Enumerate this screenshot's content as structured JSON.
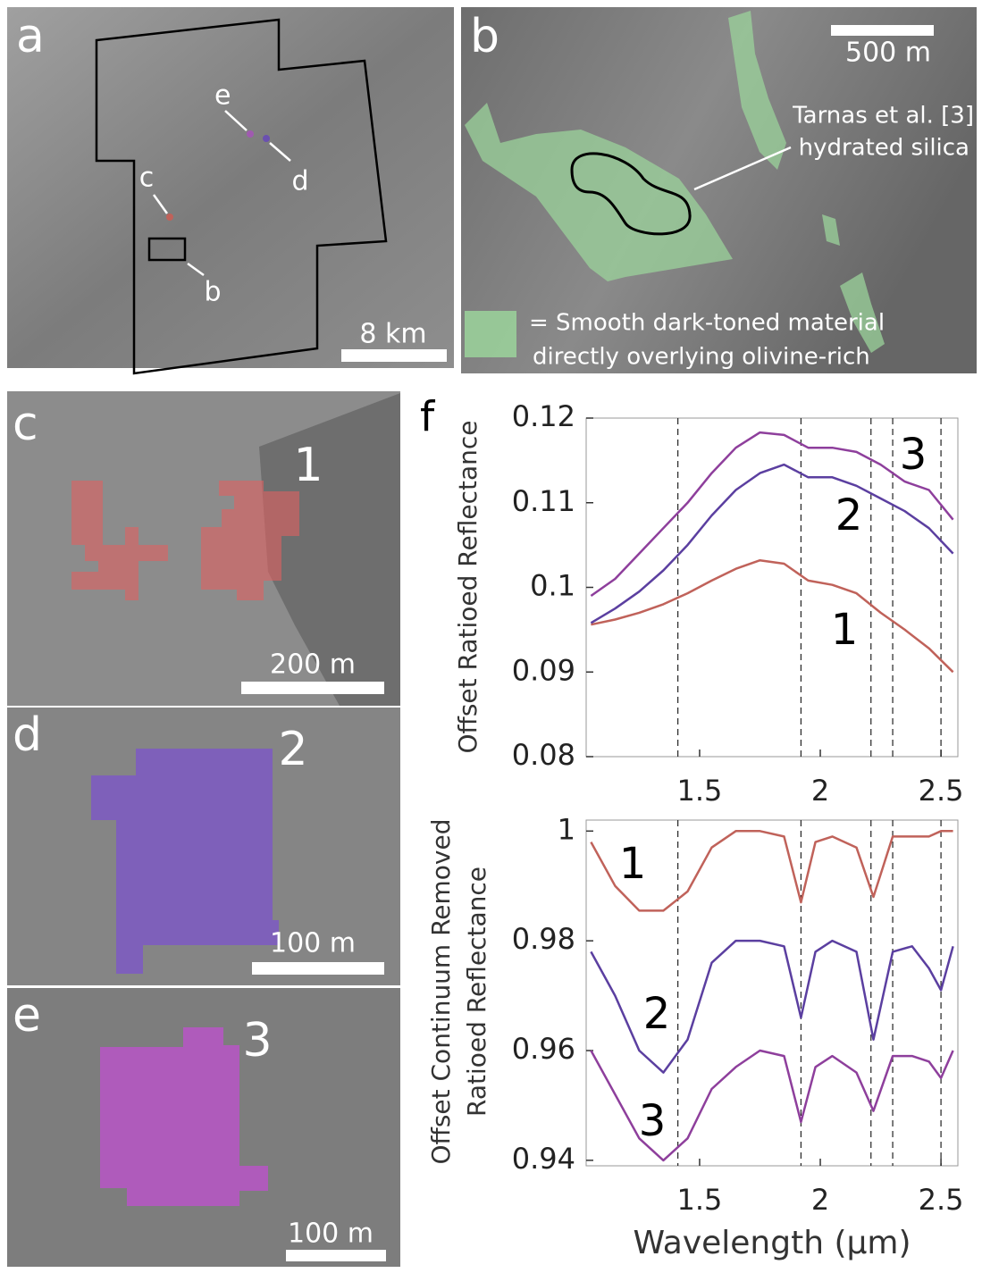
{
  "panels": {
    "a": {
      "label": "a",
      "callouts": [
        "e",
        "d",
        "c",
        "b"
      ],
      "scale": "8 km"
    },
    "b": {
      "label": "b",
      "scale": "500 m",
      "annotation": [
        "Tarnas et al. [3]",
        "hydrated silica"
      ],
      "legend": [
        "= Smooth dark-toned material",
        "directly overlying olivine-rich"
      ]
    },
    "c": {
      "label": "c",
      "region": "1",
      "scale": "200 m"
    },
    "d": {
      "label": "d",
      "region": "2",
      "scale": "100 m"
    },
    "e": {
      "label": "e",
      "region": "3",
      "scale": "100 m"
    },
    "f": {
      "label": "f"
    }
  },
  "chart_data": [
    {
      "type": "line",
      "ylabel": "Offset Ratioed Reflectance",
      "x": [
        1.05,
        1.15,
        1.25,
        1.35,
        1.45,
        1.55,
        1.65,
        1.75,
        1.85,
        1.95,
        2.05,
        2.15,
        2.25,
        2.35,
        2.45,
        2.55
      ],
      "series": [
        {
          "name": "1",
          "color": "#c0625a",
          "values": [
            0.0956,
            0.0962,
            0.097,
            0.098,
            0.0993,
            0.1008,
            0.1022,
            0.1032,
            0.1028,
            0.1008,
            0.1003,
            0.0993,
            0.097,
            0.095,
            0.0928,
            0.09
          ]
        },
        {
          "name": "2",
          "color": "#5b3fa0",
          "values": [
            0.0958,
            0.0975,
            0.0995,
            0.102,
            0.105,
            0.1085,
            0.1115,
            0.1135,
            0.1145,
            0.113,
            0.113,
            0.112,
            0.1105,
            0.109,
            0.107,
            0.104
          ]
        },
        {
          "name": "3",
          "color": "#8e3f9c",
          "values": [
            0.099,
            0.101,
            0.104,
            0.107,
            0.11,
            0.1135,
            0.1165,
            0.1183,
            0.118,
            0.1165,
            0.1165,
            0.116,
            0.1145,
            0.1125,
            0.1115,
            0.108
          ]
        }
      ],
      "xlim": [
        1.03,
        2.57
      ],
      "xticks": [
        1.5,
        2,
        2.5
      ],
      "ylim": [
        0.08,
        0.12
      ],
      "yticks": [
        0.08,
        0.09,
        0.1,
        0.11,
        0.12
      ],
      "vlines": [
        1.41,
        1.92,
        2.21,
        2.3,
        2.5
      ]
    },
    {
      "type": "line",
      "ylabel": "Offset Continuum Removed Ratioed Reflectance",
      "xlabel": "Wavelength (μm)",
      "x": [
        1.05,
        1.15,
        1.25,
        1.35,
        1.45,
        1.55,
        1.65,
        1.75,
        1.85,
        1.92,
        1.98,
        2.05,
        2.15,
        2.22,
        2.3,
        2.38,
        2.45,
        2.5,
        2.55
      ],
      "series": [
        {
          "name": "1",
          "color": "#c0625a",
          "values": [
            0.998,
            0.99,
            0.9855,
            0.9855,
            0.989,
            0.997,
            1.0,
            1.0,
            0.999,
            0.987,
            0.998,
            0.999,
            0.997,
            0.988,
            0.999,
            0.999,
            0.999,
            1.0,
            1.0
          ]
        },
        {
          "name": "2",
          "color": "#5b3fa0",
          "values": [
            0.978,
            0.97,
            0.96,
            0.956,
            0.962,
            0.976,
            0.98,
            0.98,
            0.979,
            0.966,
            0.978,
            0.98,
            0.978,
            0.962,
            0.978,
            0.979,
            0.975,
            0.971,
            0.979
          ]
        },
        {
          "name": "3",
          "color": "#8e3f9c",
          "values": [
            0.96,
            0.952,
            0.944,
            0.94,
            0.944,
            0.953,
            0.957,
            0.96,
            0.959,
            0.947,
            0.957,
            0.959,
            0.956,
            0.949,
            0.959,
            0.959,
            0.958,
            0.955,
            0.96
          ]
        }
      ],
      "xlim": [
        1.03,
        2.57
      ],
      "xticks": [
        1.5,
        2,
        2.5
      ],
      "ylim": [
        0.939,
        1.002
      ],
      "yticks": [
        0.94,
        0.96,
        0.98,
        1
      ],
      "vlines": [
        1.41,
        1.92,
        2.21,
        2.3,
        2.5
      ]
    }
  ]
}
